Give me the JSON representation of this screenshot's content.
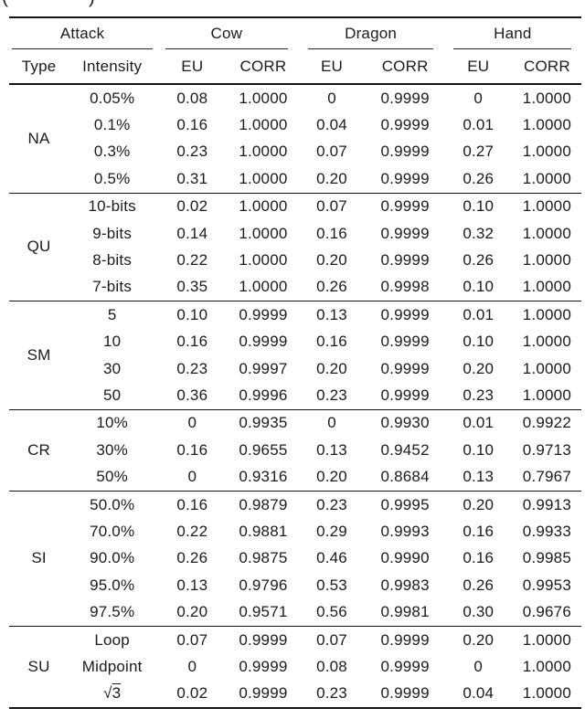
{
  "caption_fragment": {
    "left": "(",
    "right": ")"
  },
  "table": {
    "groups": [
      {
        "label": "Attack",
        "sub": [
          "Type",
          "Intensity"
        ]
      },
      {
        "label": "Cow",
        "sub": [
          "EU",
          "CORR"
        ]
      },
      {
        "label": "Dragon",
        "sub": [
          "EU",
          "CORR"
        ]
      },
      {
        "label": "Hand",
        "sub": [
          "EU",
          "CORR"
        ]
      }
    ],
    "blocks": [
      {
        "type": "NA",
        "rows": [
          {
            "intensity": "0.05%",
            "values": [
              "0.08",
              "1.0000",
              "0",
              "0.9999",
              "0",
              "1.0000"
            ]
          },
          {
            "intensity": "0.1%",
            "values": [
              "0.16",
              "1.0000",
              "0.04",
              "0.9999",
              "0.01",
              "1.0000"
            ]
          },
          {
            "intensity": "0.3%",
            "values": [
              "0.23",
              "1.0000",
              "0.07",
              "0.9999",
              "0.27",
              "1.0000"
            ]
          },
          {
            "intensity": "0.5%",
            "values": [
              "0.31",
              "1.0000",
              "0.20",
              "0.9999",
              "0.26",
              "1.0000"
            ]
          }
        ]
      },
      {
        "type": "QU",
        "rows": [
          {
            "intensity": "10-bits",
            "values": [
              "0.02",
              "1.0000",
              "0.07",
              "0.9999",
              "0.10",
              "1.0000"
            ]
          },
          {
            "intensity": "9-bits",
            "values": [
              "0.14",
              "1.0000",
              "0.16",
              "0.9999",
              "0.32",
              "1.0000"
            ]
          },
          {
            "intensity": "8-bits",
            "values": [
              "0.22",
              "1.0000",
              "0.20",
              "0.9999",
              "0.26",
              "1.0000"
            ]
          },
          {
            "intensity": "7-bits",
            "values": [
              "0.35",
              "1.0000",
              "0.26",
              "0.9998",
              "0.10",
              "1.0000"
            ]
          }
        ]
      },
      {
        "type": "SM",
        "rows": [
          {
            "intensity": "5",
            "values": [
              "0.10",
              "0.9999",
              "0.13",
              "0.9999",
              "0.01",
              "1.0000"
            ]
          },
          {
            "intensity": "10",
            "values": [
              "0.16",
              "0.9999",
              "0.16",
              "0.9999",
              "0.10",
              "1.0000"
            ]
          },
          {
            "intensity": "30",
            "values": [
              "0.23",
              "0.9997",
              "0.20",
              "0.9999",
              "0.20",
              "1.0000"
            ]
          },
          {
            "intensity": "50",
            "values": [
              "0.36",
              "0.9996",
              "0.23",
              "0.9999",
              "0.23",
              "1.0000"
            ]
          }
        ]
      },
      {
        "type": "CR",
        "rows": [
          {
            "intensity": "10%",
            "values": [
              "0",
              "0.9935",
              "0",
              "0.9930",
              "0.01",
              "0.9922"
            ]
          },
          {
            "intensity": "30%",
            "values": [
              "0.16",
              "0.9655",
              "0.13",
              "0.9452",
              "0.10",
              "0.9713"
            ]
          },
          {
            "intensity": "50%",
            "values": [
              "0",
              "0.9316",
              "0.20",
              "0.8684",
              "0.13",
              "0.7967"
            ]
          }
        ]
      },
      {
        "type": "SI",
        "rows": [
          {
            "intensity": "50.0%",
            "values": [
              "0.16",
              "0.9879",
              "0.23",
              "0.9995",
              "0.20",
              "0.9913"
            ]
          },
          {
            "intensity": "70.0%",
            "values": [
              "0.22",
              "0.9881",
              "0.29",
              "0.9993",
              "0.16",
              "0.9933"
            ]
          },
          {
            "intensity": "90.0%",
            "values": [
              "0.26",
              "0.9875",
              "0.46",
              "0.9990",
              "0.16",
              "0.9985"
            ]
          },
          {
            "intensity": "95.0%",
            "values": [
              "0.13",
              "0.9796",
              "0.53",
              "0.9983",
              "0.26",
              "0.9953"
            ]
          },
          {
            "intensity": "97.5%",
            "values": [
              "0.20",
              "0.9571",
              "0.56",
              "0.9981",
              "0.30",
              "0.9676"
            ]
          }
        ]
      },
      {
        "type": "SU",
        "rows": [
          {
            "intensity": "Loop",
            "values": [
              "0.07",
              "0.9999",
              "0.07",
              "0.9999",
              "0.20",
              "1.0000"
            ]
          },
          {
            "intensity": "Midpoint",
            "values": [
              "0",
              "0.9999",
              "0.08",
              "0.9999",
              "0",
              "1.0000"
            ]
          },
          {
            "intensity": "√3",
            "values": [
              "0.02",
              "0.9999",
              "0.23",
              "0.9999",
              "0.04",
              "1.0000"
            ]
          }
        ]
      }
    ]
  }
}
